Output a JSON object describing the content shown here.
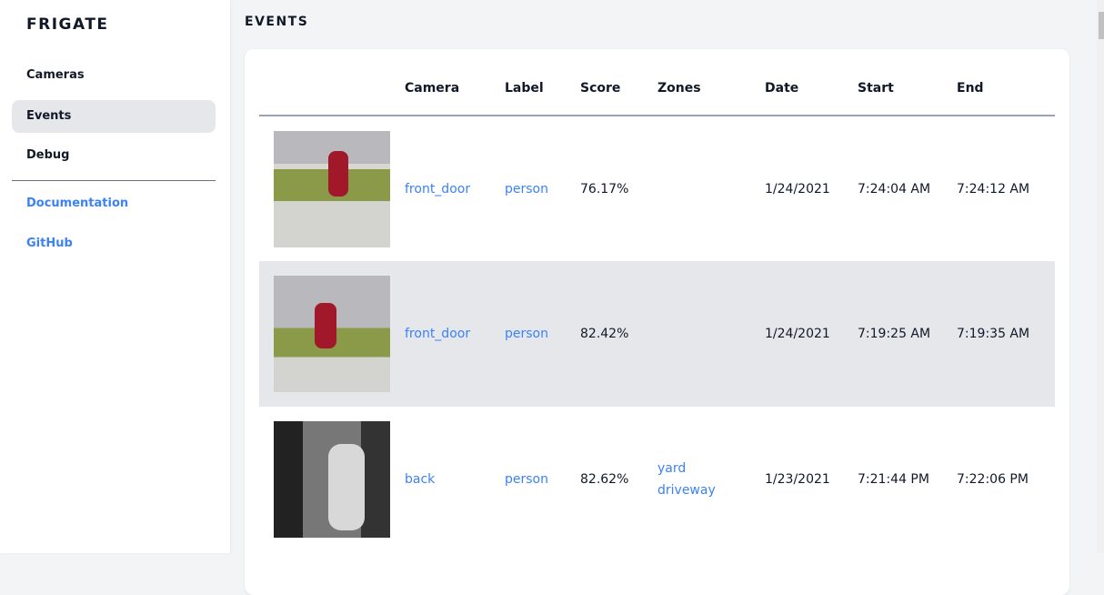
{
  "sidebar": {
    "brand": "FRIGATE",
    "items": [
      {
        "label": "Cameras"
      },
      {
        "label": "Events",
        "active": true
      },
      {
        "label": "Debug"
      }
    ],
    "links": [
      {
        "label": "Documentation"
      },
      {
        "label": "GitHub"
      }
    ]
  },
  "page": {
    "title": "EVENTS"
  },
  "table": {
    "headers": [
      "",
      "Camera",
      "Label",
      "Score",
      "Zones",
      "Date",
      "Start",
      "End"
    ],
    "rows": [
      {
        "camera": "front_door",
        "label": "person",
        "score": "76.17%",
        "zones": [
          "",
          ""
        ],
        "date": "1/24/2021",
        "start": "7:24:04 AM",
        "end": "7:24:12 AM"
      },
      {
        "camera": "front_door",
        "label": "person",
        "score": "82.42%",
        "zones": [
          "",
          ""
        ],
        "date": "1/24/2021",
        "start": "7:19:25 AM",
        "end": "7:19:35 AM"
      },
      {
        "camera": "back",
        "label": "person",
        "score": "82.62%",
        "zones": [
          "yard",
          "driveway"
        ],
        "date": "1/23/2021",
        "start": "7:21:44 PM",
        "end": "7:22:06 PM"
      }
    ]
  },
  "colors": {
    "accent": "#3b82f6",
    "active_bg": "#e5e7eb"
  }
}
